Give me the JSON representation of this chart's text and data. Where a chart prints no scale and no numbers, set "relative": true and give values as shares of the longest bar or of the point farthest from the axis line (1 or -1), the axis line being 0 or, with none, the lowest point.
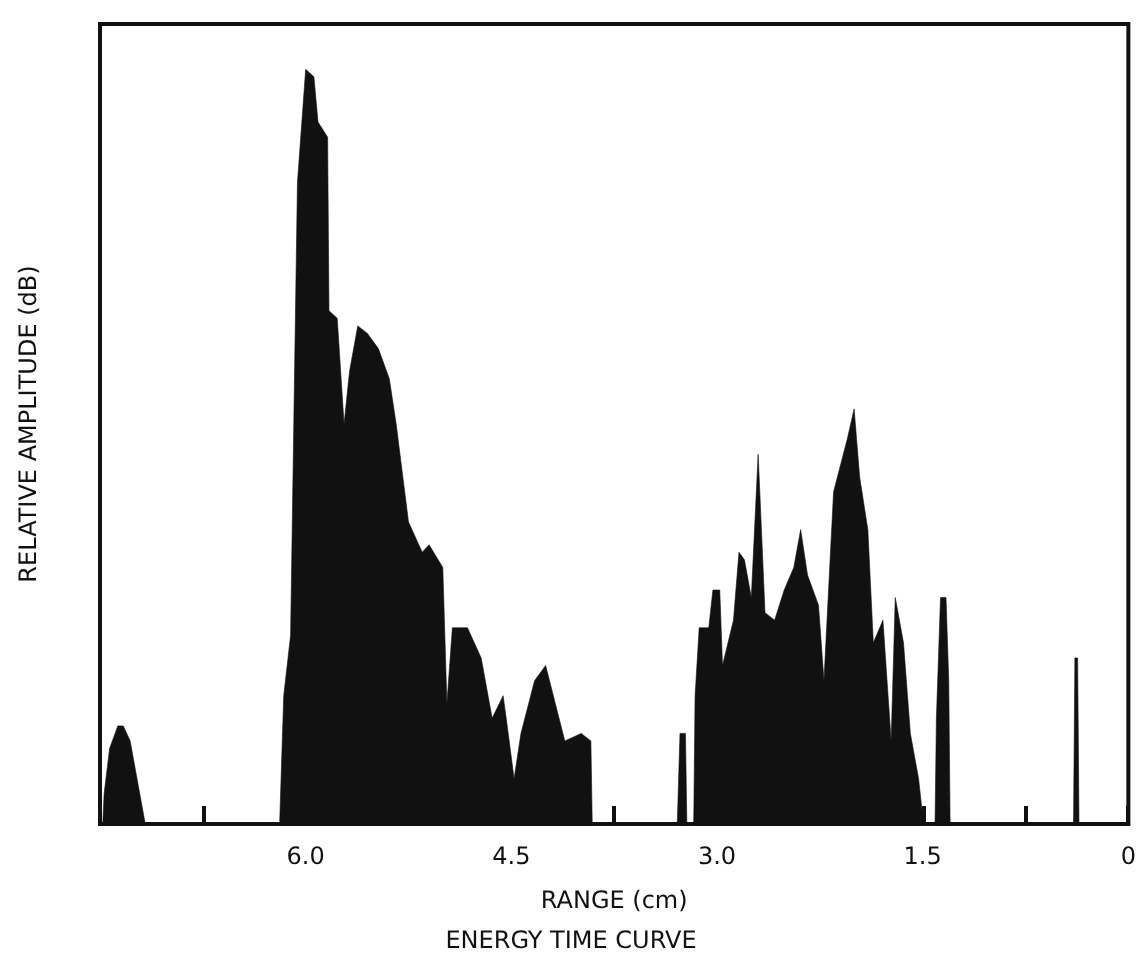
{
  "chart_data": {
    "type": "area",
    "relative": true,
    "title": "ENERGY TIME CURVE",
    "xlabel": "RANGE (cm)",
    "ylabel": "RELATIVE AMPLITUDE (dB)",
    "xlim": [
      7.5,
      0
    ],
    "xticks": [
      {
        "value": 6.75,
        "label": null
      },
      {
        "value": 6,
        "label": "6.0"
      },
      {
        "value": 5.25,
        "label": null
      },
      {
        "value": 4.5,
        "label": "4.5"
      },
      {
        "value": 3.75,
        "label": null
      },
      {
        "value": 3,
        "label": "3.0"
      },
      {
        "value": 2.25,
        "label": null
      },
      {
        "value": 1.5,
        "label": "1.5"
      },
      {
        "value": 0.75,
        "label": null
      },
      0
    ],
    "grid": false,
    "marker": "none",
    "series": [
      {
        "color": "#111111",
        "x": [
          7.48,
          7.47,
          7.43,
          7.37,
          7.33,
          7.28,
          7.24,
          7.2,
          7.17,
          6.19,
          6.16,
          6.11,
          6.06,
          6.0,
          5.94,
          5.91,
          5.84,
          5.83,
          5.77,
          5.72,
          5.68,
          5.62,
          5.55,
          5.47,
          5.39,
          5.34,
          5.25,
          5.15,
          5.1,
          5.0,
          4.97,
          4.93,
          4.82,
          4.72,
          4.64,
          4.56,
          4.53,
          4.48,
          4.43,
          4.33,
          4.25,
          4.18,
          4.11,
          3.99,
          3.92,
          3.91,
          3.29,
          3.27,
          3.23,
          3.22,
          3.17,
          3.16,
          3.13,
          3.06,
          3.03,
          2.98,
          2.96,
          2.88,
          2.84,
          2.8,
          2.75,
          2.7,
          2.65,
          2.58,
          2.51,
          2.44,
          2.39,
          2.34,
          2.26,
          2.22,
          2.15,
          2.05,
          2.0,
          1.96,
          1.9,
          1.86,
          1.79,
          1.73,
          1.7,
          1.64,
          1.59,
          1.53,
          1.5,
          1.49,
          1.41,
          1.4,
          1.37,
          1.33,
          1.31,
          1.3,
          0.4,
          0.39,
          0.37,
          0.36
        ],
        "values": [
          0,
          0.04,
          0.1,
          0.13,
          0.13,
          0.11,
          0.07,
          0.03,
          0,
          0,
          0.17,
          0.25,
          0.85,
          1,
          0.99,
          0.93,
          0.91,
          0.68,
          0.67,
          0.53,
          0.6,
          0.66,
          0.65,
          0.63,
          0.59,
          0.53,
          0.4,
          0.36,
          0.37,
          0.34,
          0.16,
          0.26,
          0.26,
          0.22,
          0.14,
          0.17,
          0.13,
          0.06,
          0.12,
          0.19,
          0.21,
          0.16,
          0.11,
          0.12,
          0.11,
          0,
          0,
          0.12,
          0.12,
          0,
          0,
          0.17,
          0.26,
          0.26,
          0.31,
          0.31,
          0.21,
          0.27,
          0.36,
          0.35,
          0.3,
          0.49,
          0.28,
          0.27,
          0.31,
          0.34,
          0.39,
          0.33,
          0.29,
          0.19,
          0.44,
          0.51,
          0.55,
          0.46,
          0.39,
          0.24,
          0.27,
          0.11,
          0.3,
          0.24,
          0.12,
          0.06,
          0.01,
          0,
          0,
          0.14,
          0.3,
          0.3,
          0.19,
          0,
          0,
          0.22,
          0.22,
          0
        ]
      }
    ]
  }
}
